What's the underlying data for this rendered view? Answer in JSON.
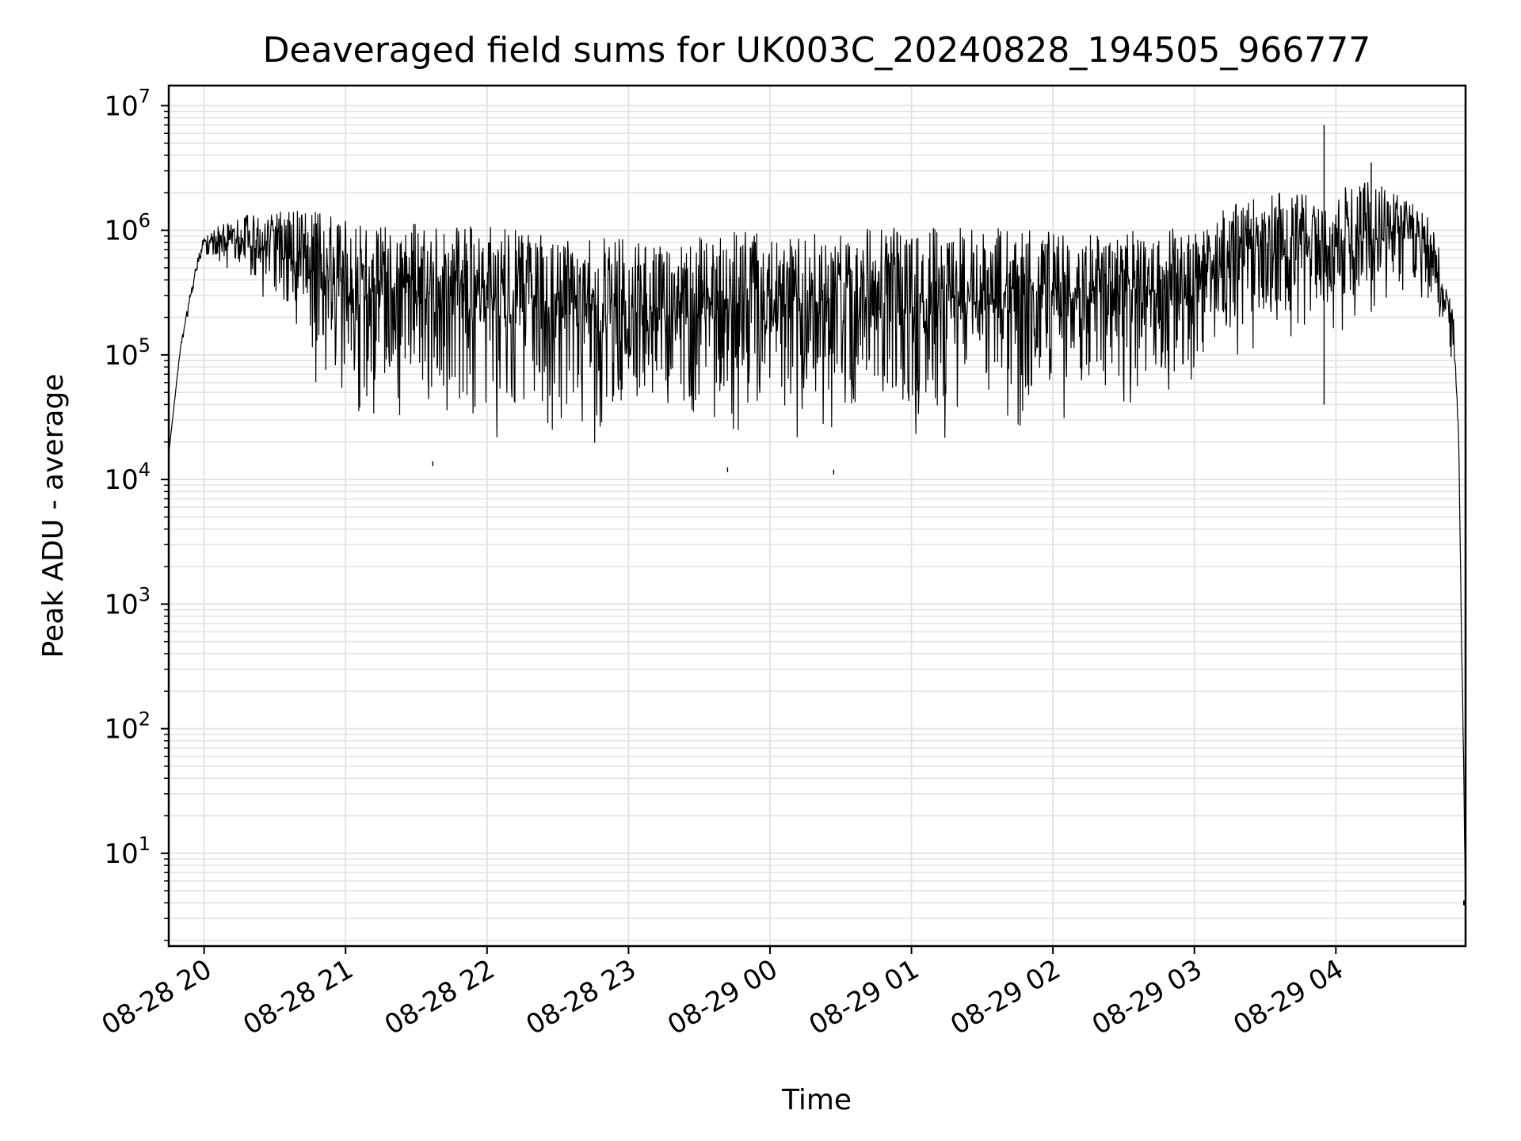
{
  "chart_data": {
    "type": "line",
    "title": "Deaveraged field sums for UK003C_20240828_194505_966777",
    "xlabel": "Time",
    "ylabel": "Peak ADU - average",
    "yscale": "log",
    "ylim": [
      1.8,
      14500000
    ],
    "xlim": [
      "2024-08-28 19:45",
      "2024-08-29 04:55"
    ],
    "grid": true,
    "legend": "none",
    "x_ticks": [
      {
        "t": "2024-08-28 20:00",
        "label": "08-28 20"
      },
      {
        "t": "2024-08-28 21:00",
        "label": "08-28 21"
      },
      {
        "t": "2024-08-28 22:00",
        "label": "08-28 22"
      },
      {
        "t": "2024-08-28 23:00",
        "label": "08-28 23"
      },
      {
        "t": "2024-08-29 00:00",
        "label": "08-29 00"
      },
      {
        "t": "2024-08-29 01:00",
        "label": "08-29 01"
      },
      {
        "t": "2024-08-29 02:00",
        "label": "08-29 02"
      },
      {
        "t": "2024-08-29 03:00",
        "label": "08-29 03"
      },
      {
        "t": "2024-08-29 04:00",
        "label": "08-29 04"
      }
    ],
    "y_ticks": [
      {
        "value": 10,
        "base": "10",
        "exp": "1"
      },
      {
        "value": 100,
        "base": "10",
        "exp": "2"
      },
      {
        "value": 1000,
        "base": "10",
        "exp": "3"
      },
      {
        "value": 10000,
        "base": "10",
        "exp": "4"
      },
      {
        "value": 100000,
        "base": "10",
        "exp": "5"
      },
      {
        "value": 1000000,
        "base": "10",
        "exp": "6"
      },
      {
        "value": 10000000,
        "base": "10",
        "exp": "7"
      }
    ],
    "series": [
      {
        "color": "#000000",
        "envelope": {
          "t": [
            "2024-08-28 19:45",
            "2024-08-28 19:50",
            "2024-08-28 19:55",
            "2024-08-28 20:00",
            "2024-08-28 20:15",
            "2024-08-28 20:30",
            "2024-08-28 20:45",
            "2024-08-28 21:00",
            "2024-08-28 21:30",
            "2024-08-28 22:00",
            "2024-08-28 22:30",
            "2024-08-28 23:00",
            "2024-08-28 23:20",
            "2024-08-28 23:30",
            "2024-08-29 00:00",
            "2024-08-29 00:30",
            "2024-08-29 01:00",
            "2024-08-29 01:30",
            "2024-08-29 02:00",
            "2024-08-29 02:30",
            "2024-08-29 03:00",
            "2024-08-29 03:15",
            "2024-08-29 03:30",
            "2024-08-29 03:55",
            "2024-08-29 04:15",
            "2024-08-29 04:30",
            "2024-08-29 04:40",
            "2024-08-29 04:45",
            "2024-08-29 04:50",
            "2024-08-29 04:52",
            "2024-08-29 04:54",
            "2024-08-29 04:55"
          ],
          "high": [
            16000,
            120000,
            400000,
            1000000,
            1300000,
            1500000,
            1450000,
            1200000,
            1150000,
            1100000,
            950000,
            850000,
            700000,
            1000000,
            1000000,
            1050000,
            1050000,
            1050000,
            1000000,
            1000000,
            1050000,
            1600000,
            2000000,
            2000000,
            2500000,
            1800000,
            1300000,
            600000,
            200000,
            30000,
            100,
            4
          ],
          "low": [
            16000,
            110000,
            300000,
            600000,
            400000,
            200000,
            50000,
            35000,
            30000,
            20000,
            17000,
            18000,
            20000,
            19000,
            17000,
            17000,
            19000,
            23000,
            28000,
            35000,
            45000,
            80000,
            120000,
            120000,
            200000,
            300000,
            250000,
            150000,
            80000,
            20000,
            50,
            3.8
          ]
        }
      }
    ],
    "spikes": [
      {
        "t": "2024-08-29 03:55",
        "value": 7000000,
        "low": 40000
      },
      {
        "t": "2024-08-29 04:15",
        "value": 3500000,
        "low": 300000
      },
      {
        "t": "2024-08-28 21:37",
        "value": 14000,
        "low": 14000
      },
      {
        "t": "2024-08-28 23:42",
        "value": 12500,
        "low": 12500
      },
      {
        "t": "2024-08-29 00:27",
        "value": 12000,
        "low": 12000
      }
    ]
  }
}
